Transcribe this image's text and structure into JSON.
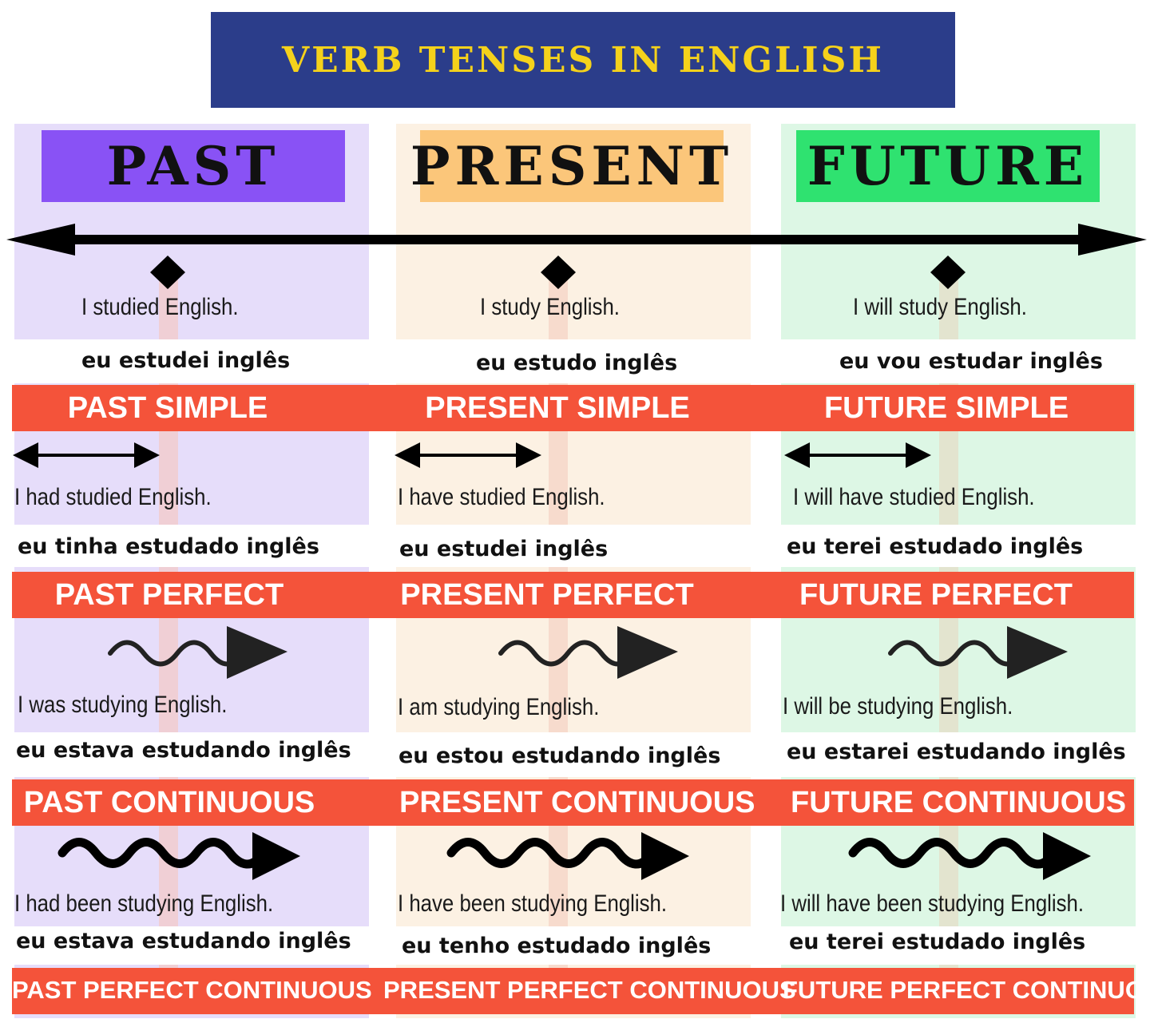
{
  "title": "VERB TENSES IN ENGLISH",
  "colors": {
    "title_bg": "#2b3d8a",
    "title_text": "#f5d21b",
    "past_header": "#8952f5",
    "present_header": "#fbc67a",
    "future_header": "#2fe270",
    "tense_bar": "#f4533a",
    "past_bg": "#e6ddfa",
    "present_bg": "#fcf1e3",
    "future_bg": "#ddf7e5"
  },
  "columns": [
    {
      "name": "PAST"
    },
    {
      "name": "PRESENT"
    },
    {
      "name": "FUTURE"
    }
  ],
  "tenses": [
    {
      "labels": [
        "PAST SIMPLE",
        "PRESENT SIMPLE",
        "FUTURE SIMPLE"
      ],
      "english": [
        "I studied English.",
        "I study English.",
        "I will study English."
      ],
      "portuguese": [
        "eu estudei inglês",
        "eu estudo inglês",
        "eu vou estudar inglês"
      ]
    },
    {
      "labels": [
        "PAST PERFECT",
        "PRESENT PERFECT",
        "FUTURE PERFECT"
      ],
      "english": [
        "I had studied English.",
        "I have studied English.",
        "I will have studied English."
      ],
      "portuguese": [
        "eu tinha estudado inglês",
        "eu estudei inglês",
        "eu terei estudado inglês"
      ]
    },
    {
      "labels": [
        "PAST CONTINUOUS",
        "PRESENT CONTINUOUS",
        "FUTURE CONTINUOUS"
      ],
      "english": [
        "I was studying English.",
        "I am studying English.",
        "I will be studying English."
      ],
      "portuguese": [
        "eu estava estudando inglês",
        "eu estou estudando inglês",
        "eu estarei estudando inglês"
      ]
    },
    {
      "labels": [
        "PAST PERFECT CONTINUOUS",
        "PRESENT PERFECT CONTINUOUS",
        "FUTURE PERFECT CONTINUOUS"
      ],
      "english": [
        "I had been studying English.",
        "I have been studying English.",
        "I will have been studying English."
      ],
      "portuguese": [
        "eu estava estudando inglês",
        "eu tenho estudado inglês",
        "eu terei estudado inglês"
      ]
    }
  ]
}
